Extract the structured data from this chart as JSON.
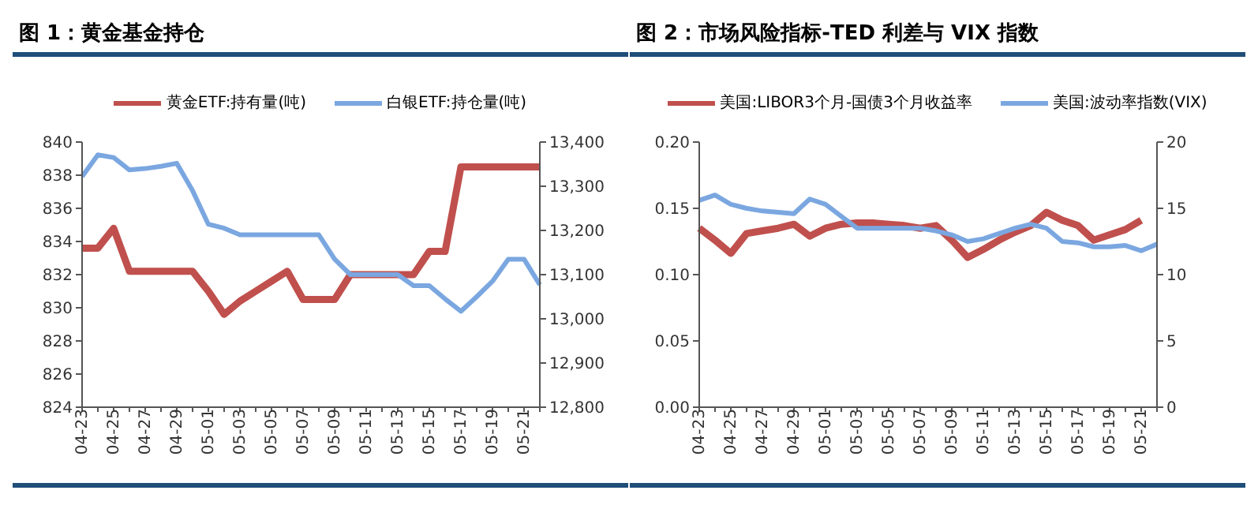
{
  "chart_data": [
    {
      "type": "line",
      "title": "图 1：黄金基金持仓",
      "legend": "top",
      "marker": "none",
      "categories": [
        "04-23",
        null,
        "04-25",
        null,
        "04-27",
        null,
        "04-29",
        null,
        "05-01",
        null,
        "05-03",
        null,
        "05-05",
        null,
        "05-07",
        null,
        "05-09",
        null,
        "05-11",
        null,
        "05-13",
        null,
        "05-15",
        null,
        "05-17",
        null,
        "05-19",
        null,
        "05-21",
        null
      ],
      "ylim": [
        824,
        840
      ],
      "yticks": [
        824,
        826,
        828,
        830,
        832,
        834,
        836,
        838,
        840
      ],
      "y2lim": [
        12800,
        13400
      ],
      "y2ticks": [
        {
          "value": 12800,
          "label": "12,800"
        },
        {
          "value": 12900,
          "label": "12,900"
        },
        {
          "value": 13000,
          "label": "13,000"
        },
        {
          "value": 13100,
          "label": "13,100"
        },
        {
          "value": 13200,
          "label": "13,200"
        },
        {
          "value": 13300,
          "label": "13,300"
        },
        {
          "value": 13400,
          "label": "13,400"
        }
      ],
      "series": [
        {
          "name": "黄金ETF:持有量(吨)",
          "color": "#c0504d",
          "values": [
            833.6,
            833.6,
            834.8,
            832.2,
            832.2,
            832.2,
            832.2,
            832.2,
            831,
            829.6,
            830.4,
            831,
            831.6,
            832.2,
            830.5,
            830.5,
            830.5,
            832,
            832,
            832,
            832,
            832,
            833.4,
            833.4,
            838.5,
            838.5,
            838.5,
            838.5,
            838.5,
            838.5
          ]
        },
        {
          "name": "白银ETF:持仓量(吨)",
          "color": "#7ba7e0",
          "axis": "y2",
          "values": [
            13322,
            13371,
            13365,
            13337,
            13340,
            13345,
            13352,
            13290,
            13214,
            13205,
            13190,
            13190,
            13190,
            13190,
            13190,
            13190,
            13135,
            13100,
            13100,
            13100,
            13100,
            13075,
            13075,
            13045,
            13017,
            13050,
            13085,
            13135,
            13135,
            13077
          ]
        }
      ]
    },
    {
      "type": "line",
      "title": "图 2：市场风险指标-TED 利差与 VIX 指数",
      "legend": "top",
      "marker": "none",
      "categories": [
        "04-23",
        null,
        "04-25",
        null,
        "04-27",
        null,
        "04-29",
        null,
        "05-01",
        null,
        "05-03",
        null,
        "05-05",
        null,
        "05-07",
        null,
        "05-09",
        null,
        "05-11",
        null,
        "05-13",
        null,
        "05-15",
        null,
        "05-17",
        null,
        "05-19",
        null,
        "05-21",
        null
      ],
      "ylim": [
        0,
        0.2
      ],
      "yticks": [
        {
          "value": 0,
          "label": "0.00"
        },
        {
          "value": 0.05,
          "label": "0.05"
        },
        {
          "value": 0.1,
          "label": "0.10"
        },
        {
          "value": 0.15,
          "label": "0.15"
        },
        {
          "value": 0.2,
          "label": "0.20"
        }
      ],
      "y2lim": [
        0,
        20
      ],
      "y2ticks": [
        0,
        5,
        10,
        15,
        20
      ],
      "series": [
        {
          "name": "美国:LIBOR3个月-国债3个月收益率",
          "color": "#c0504d",
          "values": [
            0.135,
            0.126,
            0.116,
            0.131,
            0.133,
            0.135,
            0.138,
            0.129,
            0.135,
            0.138,
            0.139,
            0.139,
            0.138,
            0.137,
            0.135,
            0.137,
            0.126,
            0.113,
            0.119,
            0.126,
            0.132,
            0.137,
            0.147,
            0.141,
            0.137,
            0.126,
            0.13,
            0.134,
            0.141,
            null
          ]
        },
        {
          "name": "美国:波动率指数(VIX)",
          "color": "#7ba7e0",
          "axis": "y2",
          "values": [
            15.6,
            16.0,
            15.3,
            15.0,
            14.8,
            14.7,
            14.6,
            15.7,
            15.3,
            14.4,
            13.5,
            13.5,
            13.5,
            13.5,
            13.5,
            13.3,
            13.0,
            12.5,
            12.7,
            13.1,
            13.5,
            13.8,
            13.5,
            12.5,
            12.4,
            12.1,
            12.1,
            12.2,
            11.8,
            12.3
          ]
        }
      ]
    }
  ]
}
